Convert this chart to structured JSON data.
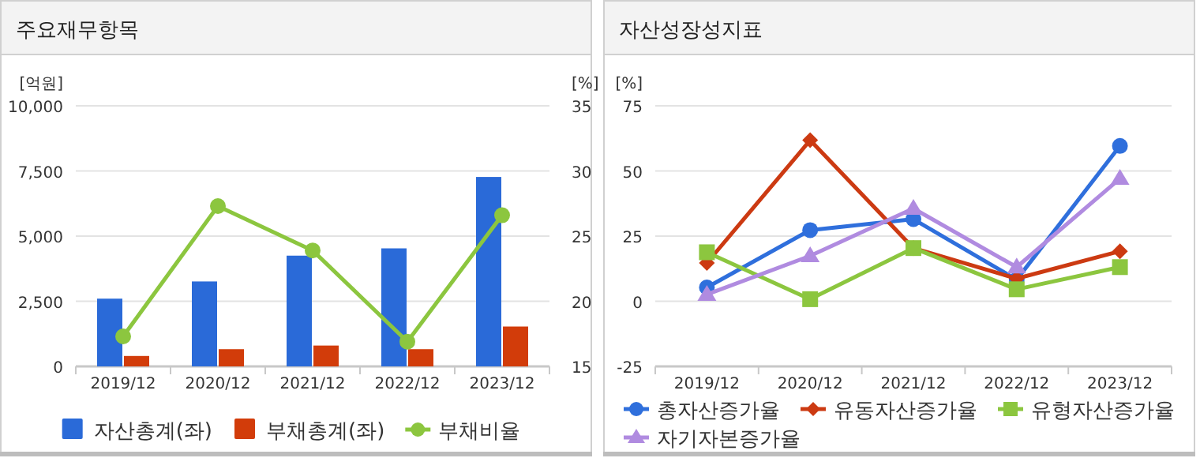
{
  "chart_data": [
    {
      "type": "bar",
      "title": "주요재무항목",
      "ylabel": "[억원]",
      "y2label": "[%]",
      "categories": [
        "2019/12",
        "2020/12",
        "2021/12",
        "2022/12",
        "2023/12"
      ],
      "series": [
        {
          "name": "자산총계(좌)",
          "color": "#2a6ad8",
          "values": [
            2600,
            3260,
            4250,
            4530,
            7270
          ]
        },
        {
          "name": "부채총계(좌)",
          "color": "#d23c0a",
          "values": [
            400,
            660,
            800,
            660,
            1530
          ]
        },
        {
          "name": "부채비율",
          "type": "line",
          "axis": "y2",
          "marker": "circle",
          "color": "#8cc63f",
          "values": [
            17.3,
            27.3,
            23.9,
            16.9,
            26.6
          ]
        }
      ],
      "ylim": [
        0,
        10000
      ],
      "yticks": [
        0,
        {
          "value": 2500,
          "label": "2,500"
        },
        {
          "value": 5000,
          "label": "5,000"
        },
        {
          "value": 7500,
          "label": "7,500"
        },
        {
          "value": 10000,
          "label": "10,000"
        }
      ],
      "y2lim": [
        15,
        35
      ],
      "y2ticks": [
        15,
        20,
        25,
        30,
        35
      ],
      "grid": "y",
      "legend": "bottom"
    },
    {
      "type": "line",
      "title": "자산성장성지표",
      "ylabel": "[%]",
      "categories": [
        "2019/12",
        "2020/12",
        "2021/12",
        "2022/12",
        "2023/12"
      ],
      "series": [
        {
          "name": "총자산증가율",
          "marker": "circle",
          "color": "#2f6fdc",
          "values": [
            5.3,
            27.3,
            31.5,
            8.3,
            59.6
          ]
        },
        {
          "name": "유동자산증가율",
          "marker": "diamond",
          "color": "#cc3a12",
          "values": [
            14.7,
            61.8,
            20.4,
            8.7,
            19.2
          ]
        },
        {
          "name": "유형자산증가율",
          "marker": "square",
          "color": "#8cc63f",
          "values": [
            18.8,
            0.8,
            20.4,
            4.6,
            13.1
          ]
        },
        {
          "name": "자기자본증가율",
          "marker": "triangle",
          "color": "#b08be0",
          "values": [
            2.6,
            17.4,
            35.6,
            13.1,
            47.1
          ]
        }
      ],
      "ylim": [
        -25,
        75
      ],
      "yticks": [
        -25,
        0,
        25,
        50,
        75
      ],
      "grid": "y",
      "legend": "bottom"
    }
  ]
}
